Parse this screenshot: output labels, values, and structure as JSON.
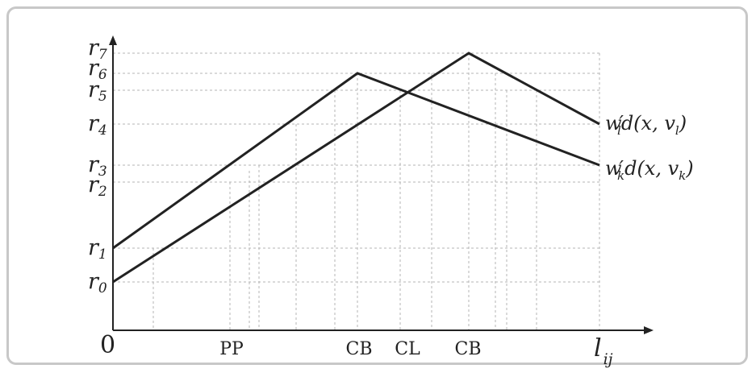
{
  "diagram": {
    "origin_label": "0",
    "x_axis_label": {
      "main": "l",
      "sub": "ij"
    },
    "y_ticks": [
      {
        "main": "r",
        "sub": "7",
        "value": 7
      },
      {
        "main": "r",
        "sub": "6",
        "value": 6
      },
      {
        "main": "r",
        "sub": "5",
        "value": 5
      },
      {
        "main": "r",
        "sub": "4",
        "value": 4
      },
      {
        "main": "r",
        "sub": "3",
        "value": 3
      },
      {
        "main": "r",
        "sub": "2",
        "value": 2
      },
      {
        "main": "r",
        "sub": "1",
        "value": 1
      },
      {
        "main": "r",
        "sub": "0",
        "value": 0
      }
    ],
    "x_markers": [
      "PP",
      "CB",
      "CL",
      "CB"
    ],
    "curves": [
      {
        "name": "w_l",
        "label_parts": [
          "w",
          "′",
          "l",
          "d(x, v",
          "l",
          ")"
        ],
        "points": [
          [
            0,
            "r0"
          ],
          [
            "CB2",
            "r7"
          ],
          [
            "end",
            "r4"
          ]
        ]
      },
      {
        "name": "w_k",
        "label_parts": [
          "w",
          "′",
          "k",
          "d(x, v",
          "k",
          ")"
        ],
        "points": [
          [
            0,
            "r1"
          ],
          [
            "CB1",
            "r6"
          ],
          [
            "end",
            "r3"
          ]
        ]
      }
    ],
    "colors": {
      "line": "#222222",
      "grid": "#b5b5b5",
      "frame": "#c8c8c8"
    }
  }
}
